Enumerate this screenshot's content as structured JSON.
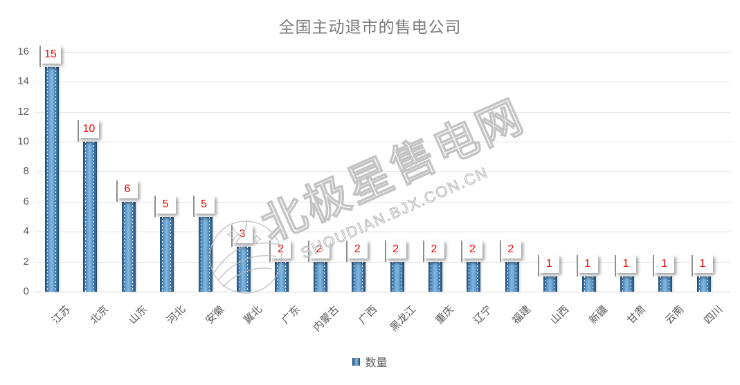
{
  "title": "全国主动退市的售电公司",
  "legend": {
    "label": "数量"
  },
  "watermark": {
    "cn": "北极星售电网",
    "en": "SHOUDIAN.BJX.CON.CN"
  },
  "colors": {
    "bar_main": "#5b93c0",
    "bar_edge": "#1d4468",
    "bar_highlight": "#83b8e1",
    "data_label": "#f30000",
    "axis_text": "#595959",
    "title_text": "#7b7b7b",
    "gridline": "#e2e2e2",
    "watermark_stroke": "#bdbdbd"
  },
  "chart_data": {
    "type": "bar",
    "title": "全国主动退市的售电公司",
    "series_name": "数量",
    "categories": [
      "江苏",
      "北京",
      "山东",
      "河北",
      "安徽",
      "冀北",
      "广东",
      "内蒙古",
      "广西",
      "黑龙江",
      "重庆",
      "辽宁",
      "福建",
      "山西",
      "新疆",
      "甘肃",
      "云南",
      "四川"
    ],
    "values": [
      15,
      10,
      6,
      5,
      5,
      3,
      2,
      2,
      2,
      2,
      2,
      2,
      2,
      1,
      1,
      1,
      1,
      1
    ],
    "xlabel": "",
    "ylabel": "",
    "ylim": [
      0,
      16
    ],
    "ytick_step": 2,
    "grid": true,
    "legend_position": "bottom",
    "data_labels": true,
    "data_label_style": "white-callout-red-text"
  }
}
